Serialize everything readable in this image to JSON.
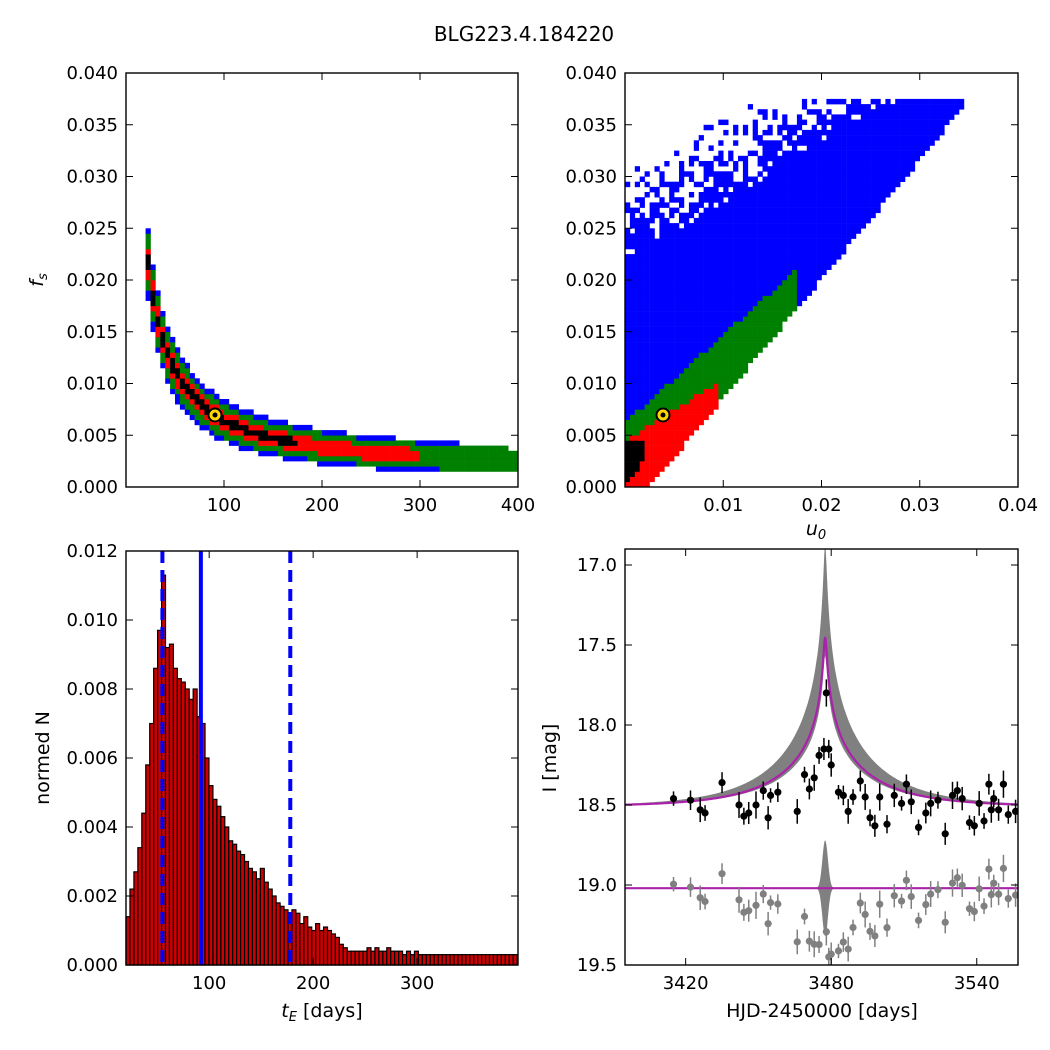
{
  "title": "BLG223.4.184220",
  "colors": {
    "level1": "#0000ff",
    "level2": "#008000",
    "level3": "#ff0000",
    "level4": "#000000",
    "best_fit_marker": "#ffd700",
    "bar_fill": "#cc0000",
    "model_line": "#aa22aa",
    "data_points": "#000000",
    "residual_points": "#808080"
  },
  "chart_data": [
    {
      "type": "heatmap",
      "name": "fs-vs-tE",
      "xlabel": "",
      "ylabel": "f_s",
      "xlim": [
        0,
        400
      ],
      "ylim": [
        0,
        0.04
      ],
      "xticks": [
        100,
        200,
        300,
        400
      ],
      "xtick_labels": [
        "100",
        "200",
        "300",
        "400"
      ],
      "yticks": [
        0,
        0.005,
        0.01,
        0.015,
        0.02,
        0.025,
        0.03,
        0.035,
        0.04
      ],
      "ytick_labels": [
        "0.000",
        "0.005",
        "0.010",
        "0.015",
        "0.020",
        "0.025",
        "0.030",
        "0.035",
        "0.040"
      ],
      "best_fit": [
        92,
        0.0069
      ]
    },
    {
      "type": "heatmap",
      "name": "fs-vs-u0",
      "xlabel": "u_0",
      "ylabel": "",
      "xlim": [
        0,
        0.04
      ],
      "ylim": [
        0,
        0.04
      ],
      "xticks": [
        0.01,
        0.02,
        0.03,
        0.04
      ],
      "xtick_labels": [
        "0.01",
        "0.02",
        "0.03",
        "0.04"
      ],
      "yticks": [
        0,
        0.005,
        0.01,
        0.015,
        0.02,
        0.025,
        0.03,
        0.035,
        0.04
      ],
      "ytick_labels": [
        "0.000",
        "0.005",
        "0.010",
        "0.015",
        "0.020",
        "0.025",
        "0.030",
        "0.035",
        "0.040"
      ],
      "best_fit": [
        0.0039,
        0.0069
      ]
    },
    {
      "type": "bar",
      "name": "tE-histogram",
      "xlabel": "t_E [days]",
      "ylabel": "normed N",
      "xlim": [
        20,
        397
      ],
      "ylim": [
        0,
        0.012
      ],
      "xticks": [
        100,
        200,
        300
      ],
      "xtick_labels": [
        "100",
        "200",
        "300"
      ],
      "yticks": [
        0,
        0.002,
        0.004,
        0.006,
        0.008,
        0.01,
        0.012
      ],
      "ytick_labels": [
        "0.000",
        "0.002",
        "0.004",
        "0.006",
        "0.008",
        "0.010",
        "0.012"
      ],
      "bin_start": 20,
      "bin_width": 3.8,
      "values": [
        0.0014,
        0.0022,
        0.0027,
        0.0034,
        0.0044,
        0.0058,
        0.007,
        0.0086,
        0.0097,
        0.0113,
        0.0092,
        0.0093,
        0.0086,
        0.0083,
        0.0082,
        0.008,
        0.0077,
        0.008,
        0.0072,
        0.007,
        0.006,
        0.0052,
        0.0048,
        0.0046,
        0.0043,
        0.004,
        0.0036,
        0.0035,
        0.0033,
        0.0032,
        0.003,
        0.0028,
        0.0027,
        0.0025,
        0.0028,
        0.0024,
        0.0022,
        0.002,
        0.0018,
        0.0017,
        0.0016,
        0.0015,
        0.0016,
        0.0015,
        0.0012,
        0.0014,
        0.0011,
        0.001,
        0.0012,
        0.001,
        0.0011,
        0.001,
        0.0009,
        0.0008,
        0.0006,
        0.0005,
        0.0004,
        0.0004,
        0.0004,
        0.0004,
        0.0004,
        0.0005,
        0.0004,
        0.0005,
        0.0004,
        0.0004,
        0.0005,
        0.0004,
        0.0004,
        0.0004,
        0.0003,
        0.0004,
        0.0003,
        0.0004,
        0.0003,
        0.0003,
        0.0003,
        0.0003,
        0.0003,
        0.0003,
        0.0003,
        0.0003,
        0.0003,
        0.0003,
        0.0003,
        0.0003,
        0.0003,
        0.0003,
        0.0003,
        0.0003,
        0.0003,
        0.0003,
        0.0003,
        0.0003,
        0.0003,
        0.0003,
        0.0003,
        0.0003,
        0.0003
      ],
      "median_line": 92,
      "dashed_lines": [
        55,
        178
      ]
    },
    {
      "type": "scatter",
      "name": "light-curve",
      "xlabel": "HJD-2450000 [days]",
      "ylabel": "I [mag]",
      "xlim": [
        3395,
        3557
      ],
      "ylim": [
        19.5,
        16.9
      ],
      "xticks": [
        3420,
        3480,
        3540
      ],
      "xtick_labels": [
        "3420",
        "3480",
        "3540"
      ],
      "yticks": [
        17.0,
        17.5,
        18.0,
        18.5,
        19.0,
        19.5
      ],
      "ytick_labels": [
        "17.0",
        "17.5",
        "18.0",
        "18.5",
        "19.0",
        "19.5"
      ],
      "t0": 3477.5,
      "baseline_mag": 18.51,
      "peak_mag": 17.45,
      "residual_baseline": 19.02,
      "observations": [
        [
          3415,
          18.46
        ],
        [
          3422,
          18.47
        ],
        [
          3426,
          18.53
        ],
        [
          3428,
          18.55
        ],
        [
          3435,
          18.36
        ],
        [
          3442,
          18.5
        ],
        [
          3444,
          18.57
        ],
        [
          3446,
          18.55
        ],
        [
          3449,
          18.5
        ],
        [
          3452,
          18.41
        ],
        [
          3454,
          18.58
        ],
        [
          3455,
          18.44
        ],
        [
          3458,
          18.42
        ],
        [
          3466,
          18.54
        ],
        [
          3469,
          18.31
        ],
        [
          3471,
          18.4
        ],
        [
          3473,
          18.33
        ],
        [
          3475,
          18.19
        ],
        [
          3477,
          18.15
        ],
        [
          3478,
          17.8
        ],
        [
          3479,
          18.15
        ],
        [
          3480,
          18.25
        ],
        [
          3483,
          18.42
        ],
        [
          3485,
          18.44
        ],
        [
          3487,
          18.54
        ],
        [
          3489,
          18.45
        ],
        [
          3492,
          18.35
        ],
        [
          3494,
          18.45
        ],
        [
          3496,
          18.58
        ],
        [
          3498,
          18.63
        ],
        [
          3500,
          18.45
        ],
        [
          3503,
          18.62
        ],
        [
          3506,
          18.44
        ],
        [
          3509,
          18.49
        ],
        [
          3511,
          18.37
        ],
        [
          3513,
          18.48
        ],
        [
          3516,
          18.64
        ],
        [
          3519,
          18.55
        ],
        [
          3521,
          18.49
        ],
        [
          3524,
          18.47
        ],
        [
          3527,
          18.68
        ],
        [
          3530,
          18.44
        ],
        [
          3532,
          18.41
        ],
        [
          3534,
          18.46
        ],
        [
          3537,
          18.61
        ],
        [
          3539,
          18.63
        ],
        [
          3541,
          18.49
        ],
        [
          3543,
          18.6
        ],
        [
          3545,
          18.37
        ],
        [
          3546,
          18.53
        ],
        [
          3547,
          18.46
        ],
        [
          3549,
          18.53
        ],
        [
          3551,
          18.37
        ],
        [
          3553,
          18.56
        ],
        [
          3556,
          18.54
        ]
      ]
    }
  ]
}
